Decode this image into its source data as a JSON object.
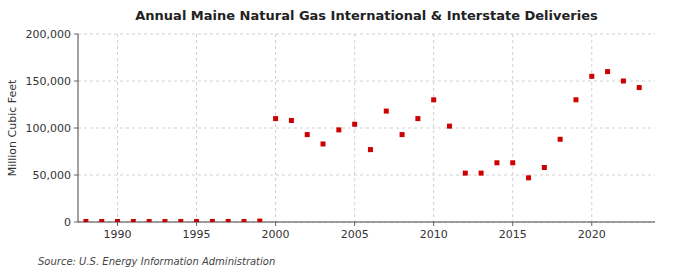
{
  "chart_data": {
    "type": "scatter",
    "title": "Annual Maine Natural Gas International & Interstate Deliveries",
    "y_label": "Million Cubic Feet",
    "annotations": [
      "Source: U.S. Energy Information Administration"
    ],
    "x": [
      1988,
      1989,
      1990,
      1991,
      1992,
      1993,
      1994,
      1995,
      1996,
      1997,
      1998,
      1999,
      2000,
      2001,
      2002,
      2003,
      2004,
      2005,
      2006,
      2007,
      2008,
      2009,
      2010,
      2011,
      2012,
      2013,
      2014,
      2015,
      2016,
      2017,
      2018,
      2019,
      2020,
      2021,
      2022,
      2023
    ],
    "values": [
      500,
      500,
      500,
      500,
      500,
      500,
      500,
      500,
      500,
      500,
      500,
      1000,
      110000,
      108000,
      93000,
      83000,
      98000,
      104000,
      77000,
      118000,
      93000,
      110000,
      130000,
      102000,
      52000,
      52000,
      63000,
      63000,
      47000,
      58000,
      88000,
      130000,
      155000,
      160000,
      150000,
      143000
    ],
    "color": "#cc0000",
    "marker": "square",
    "xlim": [
      1987.5,
      2024
    ],
    "ylim": [
      0,
      200000
    ],
    "xticks": [
      1990,
      1995,
      2000,
      2005,
      2010,
      2015,
      2020
    ],
    "yticks": [
      0,
      {
        "value": 50000,
        "label": "50,000"
      },
      {
        "value": 100000,
        "label": "100,000"
      },
      {
        "value": 150000,
        "label": "150,000"
      },
      {
        "value": 200000,
        "label": "200,000"
      }
    ],
    "grid": true
  }
}
